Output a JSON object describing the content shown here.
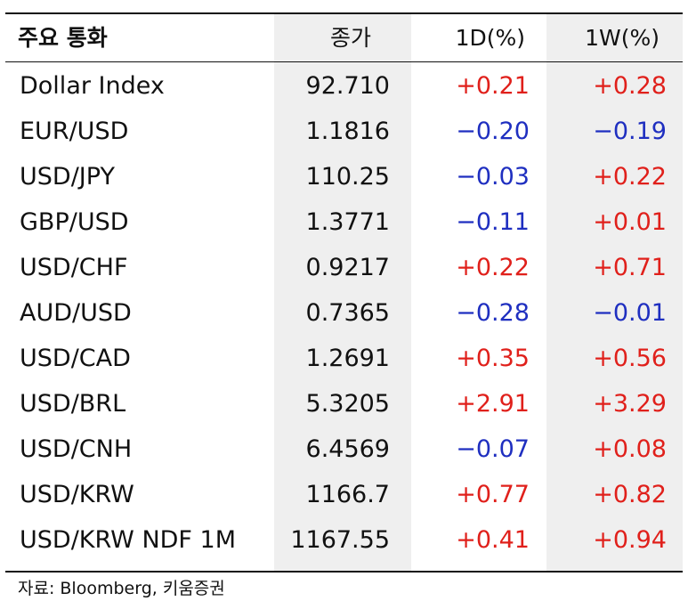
{
  "table": {
    "headers": [
      "주요 통화",
      "종가",
      "1D(%)",
      "1W(%)"
    ],
    "rows": [
      {
        "name": "Dollar Index",
        "close": "92.710",
        "d1": "+0.21",
        "w1": "+0.28"
      },
      {
        "name": "EUR/USD",
        "close": "1.1816",
        "d1": "−0.20",
        "w1": "−0.19"
      },
      {
        "name": "USD/JPY",
        "close": "110.25",
        "d1": "−0.03",
        "w1": "+0.22"
      },
      {
        "name": "GBP/USD",
        "close": "1.3771",
        "d1": "−0.11",
        "w1": "+0.01"
      },
      {
        "name": "USD/CHF",
        "close": "0.9217",
        "d1": "+0.22",
        "w1": "+0.71"
      },
      {
        "name": "AUD/USD",
        "close": "0.7365",
        "d1": "−0.28",
        "w1": "−0.01"
      },
      {
        "name": "USD/CAD",
        "close": "1.2691",
        "d1": "+0.35",
        "w1": "+0.56"
      },
      {
        "name": "USD/BRL",
        "close": "5.3205",
        "d1": "+2.91",
        "w1": "+3.29"
      },
      {
        "name": "USD/CNH",
        "close": "6.4569",
        "d1": "−0.07",
        "w1": "+0.08"
      },
      {
        "name": "USD/KRW",
        "close": "1166.7",
        "d1": "+0.77",
        "w1": "+0.82"
      },
      {
        "name": "USD/KRW NDF 1M",
        "close": "1167.55",
        "d1": "+0.41",
        "w1": "+0.94"
      }
    ]
  },
  "source": "자료: Bloomberg, 키움증권",
  "colors": {
    "positive": "#e0201b",
    "negative": "#1f2fc0",
    "shade": "#efefef"
  }
}
